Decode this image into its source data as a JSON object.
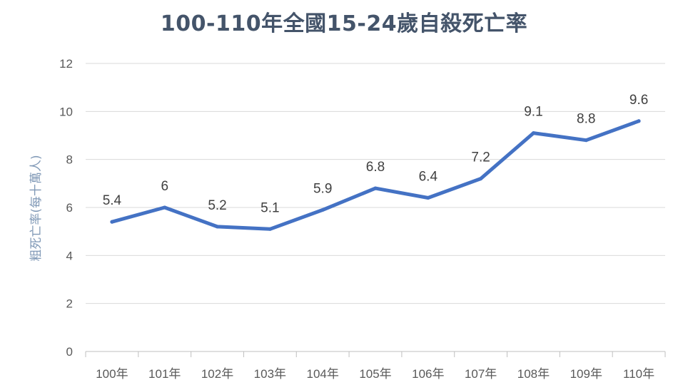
{
  "chart_data": {
    "type": "line",
    "title": "100-110年全國15-24歲自殺死亡率",
    "xlabel": "",
    "ylabel": "粗死亡率(每十萬人)",
    "categories": [
      "100年",
      "101年",
      "102年",
      "103年",
      "104年",
      "105年",
      "106年",
      "107年",
      "108年",
      "109年",
      "110年"
    ],
    "series": [
      {
        "values": [
          5.4,
          6,
          5.2,
          5.1,
          5.9,
          6.8,
          6.4,
          7.2,
          9.1,
          8.8,
          9.6
        ]
      }
    ],
    "data_labels": [
      "5.4",
      "6",
      "5.2",
      "5.1",
      "5.9",
      "6.8",
      "6.4",
      "7.2",
      "9.1",
      "8.8",
      "9.6"
    ],
    "ylim": [
      0,
      12
    ],
    "yticks": [
      0,
      2,
      4,
      6,
      8,
      10,
      12
    ],
    "grid": true,
    "legend": "none",
    "colors": {
      "line": "#4472c4",
      "grid": "#d9d9d9",
      "title": "#44546a"
    }
  }
}
